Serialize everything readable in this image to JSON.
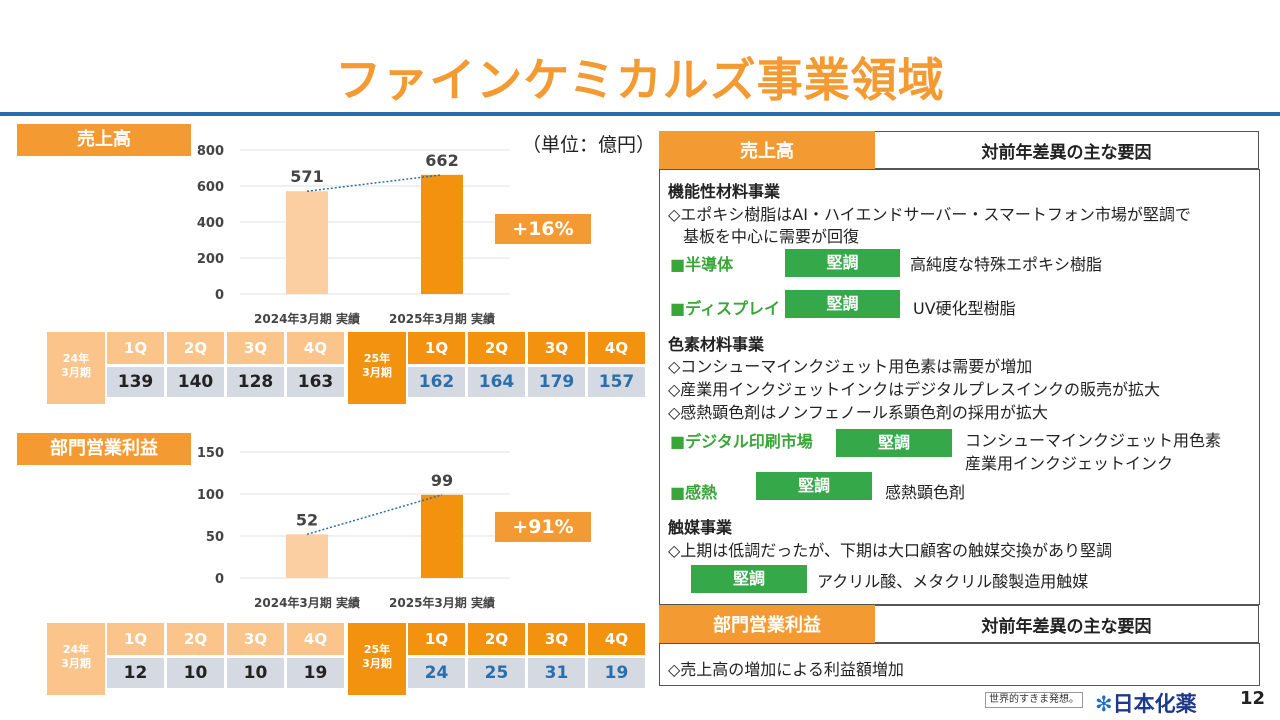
{
  "title": "ファインケミカルズ事業領域",
  "unit": "（単位：億円）",
  "sales": {
    "label": "売上高",
    "growth": "+16%",
    "q24": {
      "year_line1": "24年",
      "year_line2": "3月期",
      "quarters": [
        "1Q",
        "2Q",
        "3Q",
        "4Q"
      ],
      "values": [
        "139",
        "140",
        "128",
        "163"
      ]
    },
    "q25": {
      "year_line1": "25年",
      "year_line2": "3月期",
      "quarters": [
        "1Q",
        "2Q",
        "3Q",
        "4Q"
      ],
      "values": [
        "162",
        "164",
        "179",
        "157"
      ]
    }
  },
  "profit": {
    "label": "部門営業利益",
    "growth": "+91%",
    "q24": {
      "year_line1": "24年",
      "year_line2": "3月期",
      "quarters": [
        "1Q",
        "2Q",
        "3Q",
        "4Q"
      ],
      "values": [
        "12",
        "10",
        "10",
        "19"
      ]
    },
    "q25": {
      "year_line1": "25年",
      "year_line2": "3月期",
      "quarters": [
        "1Q",
        "2Q",
        "3Q",
        "4Q"
      ],
      "values": [
        "24",
        "25",
        "31",
        "19"
      ]
    }
  },
  "chart_data": [
    {
      "type": "bar",
      "title": "売上高",
      "categories": [
        "2024年3月期 実績",
        "2025年3月期 実績"
      ],
      "values": [
        571,
        662
      ],
      "data_labels": [
        "571",
        "662"
      ],
      "yticks": [
        "0",
        "200",
        "400",
        "600",
        "800"
      ],
      "ylim": [
        0,
        800
      ],
      "colors": [
        "#fccfa3",
        "#f3920f"
      ]
    },
    {
      "type": "bar",
      "title": "部門営業利益",
      "categories": [
        "2024年3月期 実績",
        "2025年3月期 実績"
      ],
      "values": [
        52,
        99
      ],
      "data_labels": [
        "52",
        "99"
      ],
      "yticks": [
        "0",
        "50",
        "100",
        "150"
      ],
      "ylim": [
        0,
        150
      ],
      "colors": [
        "#fccfa3",
        "#f3920f"
      ]
    }
  ],
  "right_panel": {
    "sales_header": {
      "left": "売上高",
      "right": "対前年差異の主な要因"
    },
    "functional": {
      "title": "機能性材料事業",
      "line1": "◇エポキシ樹脂はAI・ハイエンドサーバー・スマートフォン市場が堅調で",
      "line2": "基板を中心に需要が回復",
      "items": [
        {
          "market": "■半導体",
          "status": "堅調",
          "desc": "高純度な特殊エポキシ樹脂"
        },
        {
          "market": "■ディスプレイ",
          "status": "堅調",
          "desc": "UV硬化型樹脂"
        }
      ]
    },
    "pigment": {
      "title": "色素材料事業",
      "lines": [
        "◇コンシューマインクジェット用色素は需要が増加",
        "◇産業用インクジェットインクはデジタルプレスインクの販売が拡大",
        "◇感熱顕色剤はノンフェノール系顕色剤の採用が拡大"
      ],
      "items": [
        {
          "market": "■デジタル印刷市場",
          "status": "堅調",
          "desc1": "コンシューマインクジェット用色素",
          "desc2": "産業用インクジェットインク"
        },
        {
          "market": "■感熱",
          "status": "堅調",
          "desc1": "感熱顕色剤"
        }
      ]
    },
    "catalyst": {
      "title": "触媒事業",
      "line1": "◇上期は低調だったが、下期は大口顧客の触媒交換があり堅調",
      "status": "堅調",
      "desc": "アクリル酸、メタクリル酸製造用触媒"
    },
    "profit_header": {
      "left": "部門営業利益",
      "right": "対前年差異の主な要因"
    },
    "profit_line": "◇売上高の増加による利益額増加"
  },
  "footer": {
    "slogan": "世界的すきま発想。",
    "logo": "日本化薬",
    "page": "12"
  }
}
